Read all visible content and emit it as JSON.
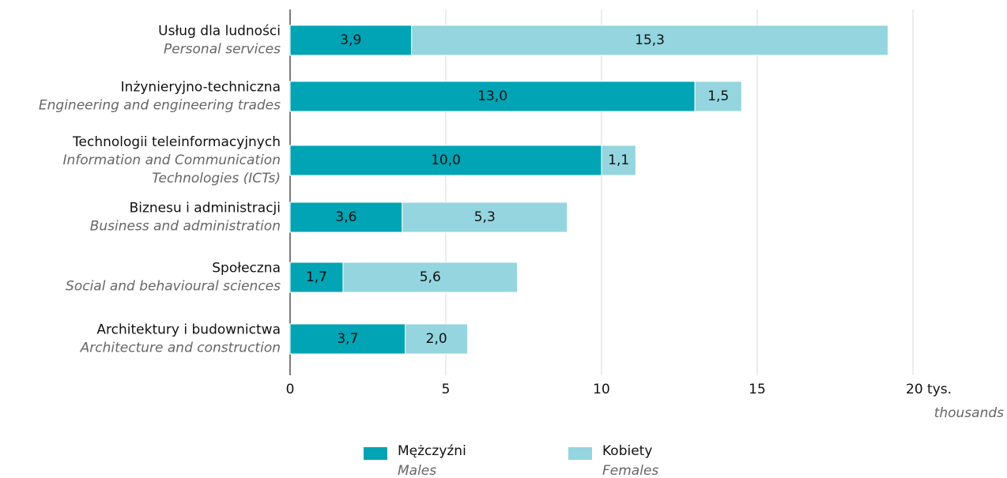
{
  "chart_data": {
    "type": "stacked-barh",
    "categories": [
      "Usług dla ludności",
      "Inżynieryjno-techniczna",
      "Technologii teleinformacyjnych",
      "Biznesu i administracji",
      "Społeczna",
      "Architektury i budownictwa"
    ],
    "categories_en": [
      [
        "Personal services"
      ],
      [
        "Engineering and engineering trades"
      ],
      [
        "Information and Communication",
        "Technologies (ICTs)"
      ],
      [
        "Business and administration"
      ],
      [
        "Social and behavioural sciences"
      ],
      [
        "Architecture and construction"
      ]
    ],
    "series": [
      {
        "name": "Mężczyźni",
        "name_en": "Males",
        "color": "#00a4b4",
        "label_color": "#ffffff",
        "values": [
          3.9,
          13.0,
          10.0,
          3.6,
          1.7,
          3.7
        ],
        "value_labels": [
          "3,9",
          "13,0",
          "10,0",
          "3,6",
          "1,7",
          "3,7"
        ]
      },
      {
        "name": "Kobiety",
        "name_en": "Females",
        "color": "#94d5df",
        "label_color": "#111111",
        "values": [
          15.3,
          1.5,
          1.1,
          5.3,
          5.6,
          2.0
        ],
        "value_labels": [
          "15,3",
          "1,5",
          "1,1",
          "5,3",
          "5,6",
          "2,0"
        ]
      }
    ],
    "xlim": [
      0,
      20
    ],
    "xticks": [
      0,
      5,
      10,
      15,
      {
        "value": 20,
        "label": "20 tys."
      }
    ],
    "x_label_en": "thousands",
    "grid": true
  }
}
